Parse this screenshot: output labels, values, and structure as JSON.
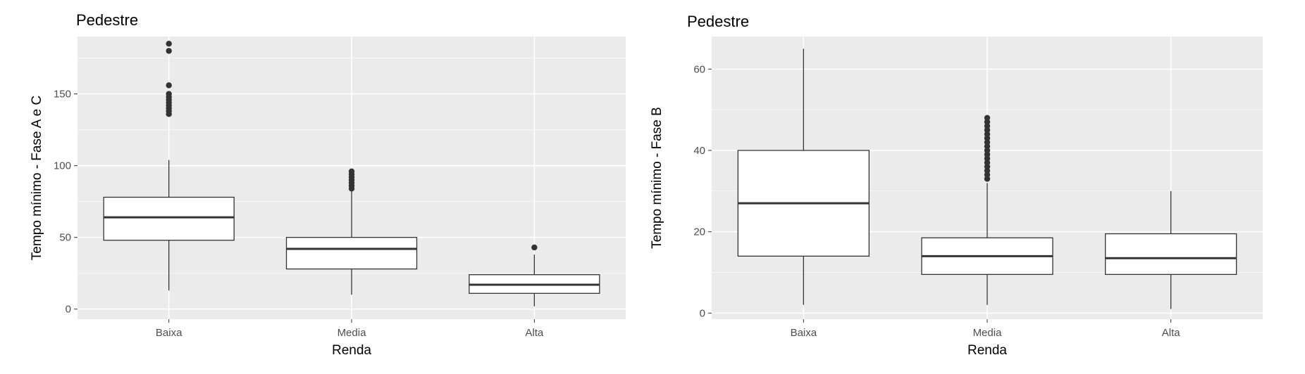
{
  "chart_data": [
    {
      "type": "boxplot",
      "title": "Pedestre",
      "xlabel": "Renda",
      "ylabel": "Tempo mínimo - Fase A e C",
      "categories": [
        "Baixa",
        "Media",
        "Alta"
      ],
      "ylim": [
        -7,
        190
      ],
      "yticks": [
        0,
        50,
        100,
        150
      ],
      "grid": true,
      "boxes": [
        {
          "category": "Baixa",
          "whisker_low": 13,
          "q1": 48,
          "median": 64,
          "q3": 78,
          "whisker_high": 104,
          "outliers": [
            136,
            138,
            140,
            142,
            144,
            146,
            148,
            150,
            156,
            180,
            185
          ]
        },
        {
          "category": "Media",
          "whisker_low": 10,
          "q1": 28,
          "median": 42,
          "q3": 50,
          "whisker_high": 83,
          "outliers": [
            84,
            86,
            88,
            90,
            92,
            94,
            96
          ]
        },
        {
          "category": "Alta",
          "whisker_low": 2,
          "q1": 11,
          "median": 17,
          "q3": 24,
          "whisker_high": 38,
          "outliers": [
            43
          ]
        }
      ]
    },
    {
      "type": "boxplot",
      "title": "Pedestre",
      "xlabel": "Renda",
      "ylabel": "Tempo mínimo - Fase B",
      "categories": [
        "Baixa",
        "Media",
        "Alta"
      ],
      "ylim": [
        -1.5,
        68
      ],
      "yticks": [
        0,
        20,
        40,
        60
      ],
      "grid": true,
      "boxes": [
        {
          "category": "Baixa",
          "whisker_low": 2,
          "q1": 14,
          "median": 27,
          "q3": 40,
          "whisker_high": 65,
          "outliers": []
        },
        {
          "category": "Media",
          "whisker_low": 2,
          "q1": 9.5,
          "median": 14,
          "q3": 18.5,
          "whisker_high": 32,
          "outliers": [
            33,
            34,
            35,
            36,
            37,
            38,
            39,
            40,
            41,
            42,
            43,
            44,
            45,
            46,
            47,
            48
          ]
        },
        {
          "category": "Alta",
          "whisker_low": 1,
          "q1": 9.5,
          "median": 13.5,
          "q3": 19.5,
          "whisker_high": 30,
          "outliers": []
        }
      ]
    }
  ]
}
